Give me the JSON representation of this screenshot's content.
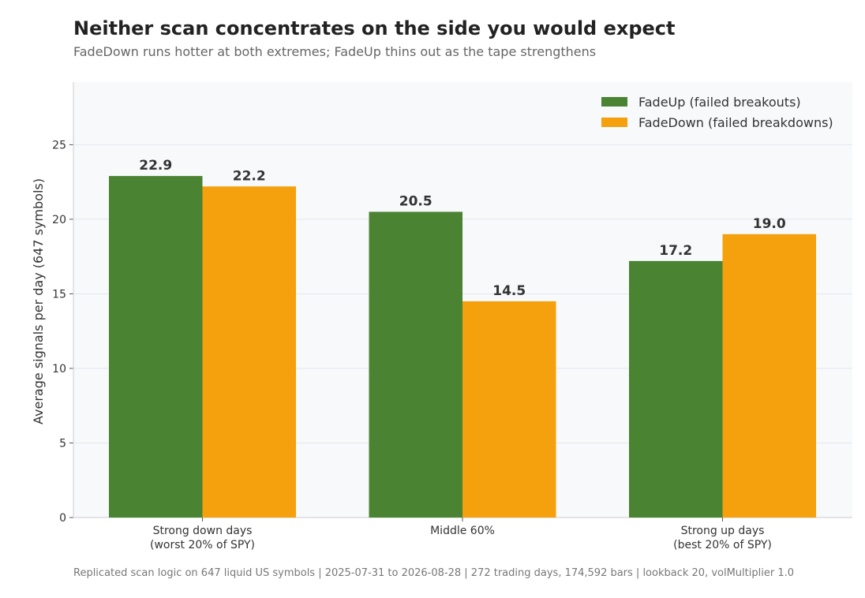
{
  "header": {
    "title": "Neither scan concentrates on the side you would expect",
    "subtitle": "FadeDown runs hotter at both extremes; FadeUp thins out as the tape strengthens"
  },
  "footnote": "Replicated scan logic on 647 liquid US symbols | 2025-07-31 to 2026-08-28 | 272 trading days, 174,592 bars  |  lookback 20, volMultiplier 1.0",
  "colors": {
    "plot_bg": "#f7f9fb",
    "grid": "#e3e8ee",
    "axis": "#cccccc"
  },
  "chart_data": {
    "type": "bar",
    "title": "Neither scan concentrates on the side you would expect",
    "xlabel": "",
    "ylabel": "Average signals per day (647 symbols)",
    "ylim": [
      0,
      29.2
    ],
    "yticks": [
      0,
      5,
      10,
      15,
      20,
      25
    ],
    "grid": true,
    "legend_position": "top-right",
    "categories": [
      [
        "Strong down days",
        "(worst 20% of SPY)"
      ],
      [
        "Middle 60%"
      ],
      [
        "Strong up days",
        "(best 20% of SPY)"
      ]
    ],
    "series": [
      {
        "name": "FadeUp (failed breakouts)",
        "color": "#4a8332",
        "values": [
          22.9,
          20.5,
          17.2
        ],
        "labels": [
          "22.9",
          "20.5",
          "17.2"
        ]
      },
      {
        "name": "FadeDown (failed breakdowns)",
        "color": "#f5a00d",
        "values": [
          22.2,
          14.5,
          19.0
        ],
        "labels": [
          "22.2",
          "14.5",
          "19.0"
        ]
      }
    ]
  }
}
